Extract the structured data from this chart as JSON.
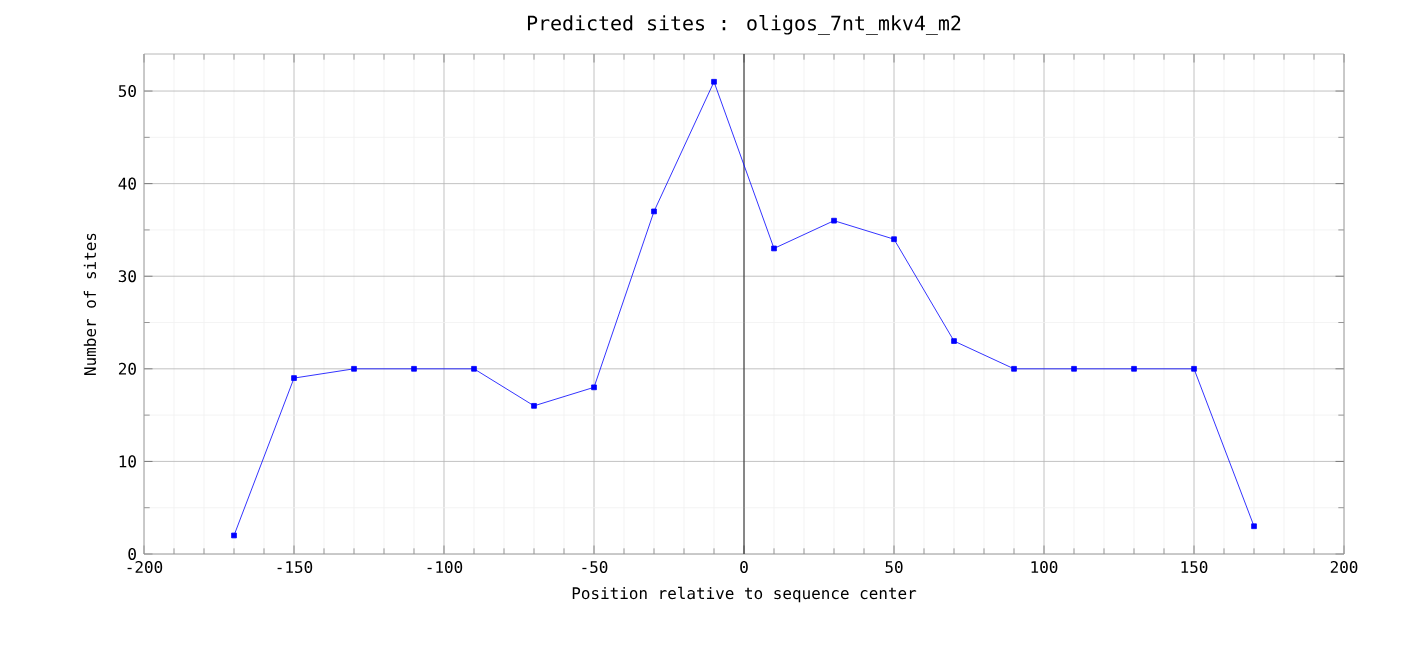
{
  "chart_data": {
    "type": "line",
    "title": "Predicted sites : oligos_7nt_mkv4_m2",
    "xlabel": "Position relative to sequence center",
    "ylabel": "Number of sites",
    "x": [
      -170,
      -150,
      -130,
      -110,
      -90,
      -70,
      -50,
      -30,
      -10,
      10,
      30,
      50,
      70,
      90,
      110,
      130,
      150,
      170
    ],
    "series": [
      {
        "color": "#0000ff",
        "values": [
          2,
          19,
          20,
          20,
          20,
          16,
          18,
          37,
          51,
          33,
          36,
          34,
          23,
          20,
          20,
          20,
          20,
          3
        ]
      }
    ],
    "xlim": [
      -200,
      200
    ],
    "xticks": [
      -200,
      -150,
      -100,
      -50,
      0,
      50,
      100,
      150,
      200
    ],
    "ylim": [
      0,
      54
    ],
    "yticks": [
      0,
      10,
      20,
      30,
      40,
      50
    ],
    "grid": true,
    "marker": "square",
    "line_style": "solid",
    "ref_lines": [
      {
        "axis": "x",
        "value": 0,
        "color": "#000000"
      }
    ]
  }
}
